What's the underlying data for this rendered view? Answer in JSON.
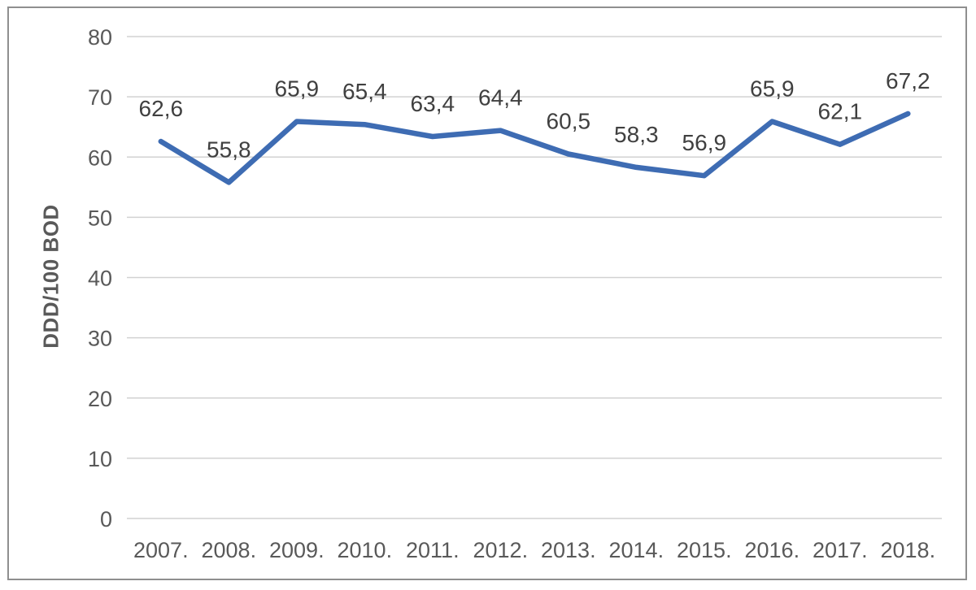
{
  "chart_data": {
    "type": "line",
    "title": "",
    "xlabel": "",
    "ylabel": "DDD/100 BOD",
    "categories": [
      "2007.",
      "2008.",
      "2009.",
      "2010.",
      "2011.",
      "2012.",
      "2013.",
      "2014.",
      "2015.",
      "2016.",
      "2017.",
      "2018."
    ],
    "series": [
      {
        "name": "DDD/100 BOD",
        "values": [
          62.6,
          55.8,
          65.9,
          65.4,
          63.4,
          64.4,
          60.5,
          58.3,
          56.9,
          65.9,
          62.1,
          67.2
        ]
      }
    ],
    "data_labels": [
      "62,6",
      "55,8",
      "65,9",
      "65,4",
      "63,4",
      "64,4",
      "60,5",
      "58,3",
      "56,9",
      "65,9",
      "62,1",
      "67,2"
    ],
    "ylim": [
      0,
      80
    ],
    "yticks": [
      0,
      10,
      20,
      30,
      40,
      50,
      60,
      70,
      80
    ],
    "grid": true,
    "legend": "none",
    "colors": {
      "line": "#3E6CB3",
      "gridline": "#D2D2D2",
      "tick_text": "#595959",
      "label_text": "#404040",
      "frame_border": "#8F8F8F"
    }
  }
}
